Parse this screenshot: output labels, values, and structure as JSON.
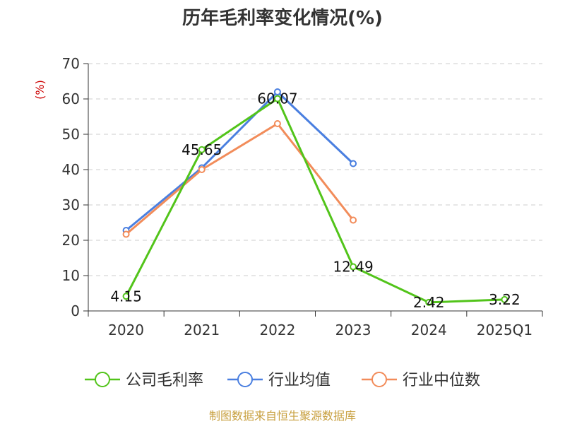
{
  "chart_data": {
    "type": "line",
    "title": "历年毛利率变化情况(%)",
    "ylabel": "(%)",
    "categories": [
      "2020",
      "2021",
      "2022",
      "2023",
      "2024",
      "2025Q1"
    ],
    "ylim": [
      0,
      70
    ],
    "yticks": [
      0,
      10,
      20,
      30,
      40,
      50,
      60,
      70
    ],
    "grid": true,
    "legend_position": "bottom",
    "series": [
      {
        "name": "公司毛利率",
        "color": "#52c41a",
        "values": [
          4.15,
          45.65,
          60.07,
          12.49,
          2.42,
          3.22
        ],
        "labels": [
          "4.15",
          "45.65",
          "60.07",
          "12.49",
          "2.42",
          "3.22"
        ]
      },
      {
        "name": "行业均值",
        "color": "#4a7fe0",
        "values": [
          22.8,
          40.5,
          62.0,
          41.7,
          null,
          null
        ]
      },
      {
        "name": "行业中位数",
        "color": "#f28c5a",
        "values": [
          21.7,
          40.0,
          53.0,
          25.7,
          null,
          null
        ]
      }
    ],
    "source": "制图数据来自恒生聚源数据库"
  }
}
